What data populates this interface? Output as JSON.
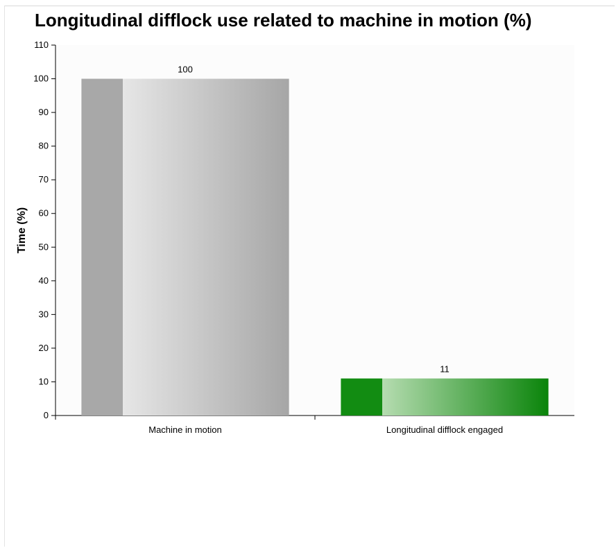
{
  "chart_data": {
    "type": "bar",
    "title": "Longitudinal difflock use related to machine in motion (%)",
    "ylabel": "Time (%)",
    "xlabel": "",
    "categories": [
      "Machine in motion",
      "Longitudinal difflock engaged"
    ],
    "values": [
      100,
      11
    ],
    "data_labels": [
      "100",
      "11"
    ],
    "ylim": [
      0,
      110
    ],
    "yticks": [
      0,
      10,
      20,
      30,
      40,
      50,
      60,
      70,
      80,
      90,
      100,
      110
    ],
    "grid": false,
    "legend": "none",
    "bar_colors": [
      {
        "dark": "#a8a8a8",
        "light": "#e6e6e6",
        "end": "#a6a6a6"
      },
      {
        "dark": "#128c12",
        "light": "#b5dcb0",
        "end": "#0a840a"
      }
    ]
  }
}
